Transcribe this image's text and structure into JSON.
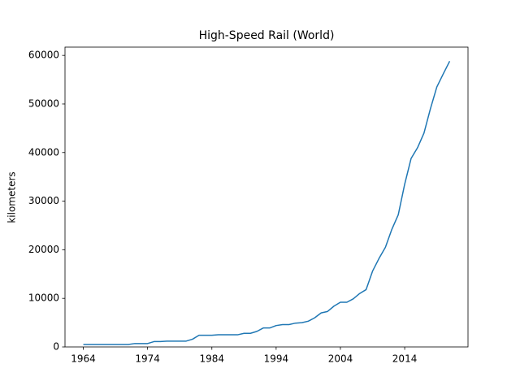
{
  "chart_data": {
    "type": "line",
    "title": "High-Speed Rail (World)",
    "ylabel": "kilometers",
    "x": [
      1964,
      1965,
      1966,
      1967,
      1968,
      1969,
      1970,
      1971,
      1972,
      1973,
      1974,
      1975,
      1976,
      1977,
      1978,
      1979,
      1980,
      1981,
      1982,
      1983,
      1984,
      1985,
      1986,
      1987,
      1988,
      1989,
      1990,
      1991,
      1992,
      1993,
      1994,
      1995,
      1996,
      1997,
      1998,
      1999,
      2000,
      2001,
      2002,
      2003,
      2004,
      2005,
      2006,
      2007,
      2008,
      2009,
      2010,
      2011,
      2012,
      2013,
      2014,
      2015,
      2016,
      2017,
      2018,
      2019,
      2020,
      2021
    ],
    "series": [
      {
        "color": "#1f77b4",
        "values": [
          500,
          500,
          500,
          500,
          500,
          500,
          500,
          500,
          700,
          700,
          700,
          1100,
          1100,
          1200,
          1200,
          1200,
          1200,
          1600,
          2400,
          2400,
          2400,
          2500,
          2500,
          2500,
          2500,
          2800,
          2800,
          3200,
          3900,
          3900,
          4400,
          4600,
          4600,
          4900,
          5000,
          5300,
          6000,
          7000,
          7300,
          8400,
          9200,
          9200,
          9900,
          11000,
          11800,
          15600,
          18200,
          20500,
          24200,
          27200,
          33500,
          38800,
          41000,
          44000,
          49000,
          53500,
          56200,
          58800
        ]
      }
    ],
    "xlim": [
      1961.15,
      2023.85
    ],
    "xticks": [
      1964,
      1974,
      1984,
      1994,
      2004,
      2014
    ],
    "ylim": [
      0,
      61700
    ],
    "yticks": [
      0,
      10000,
      20000,
      30000,
      40000,
      50000,
      60000
    ],
    "grid": false
  }
}
